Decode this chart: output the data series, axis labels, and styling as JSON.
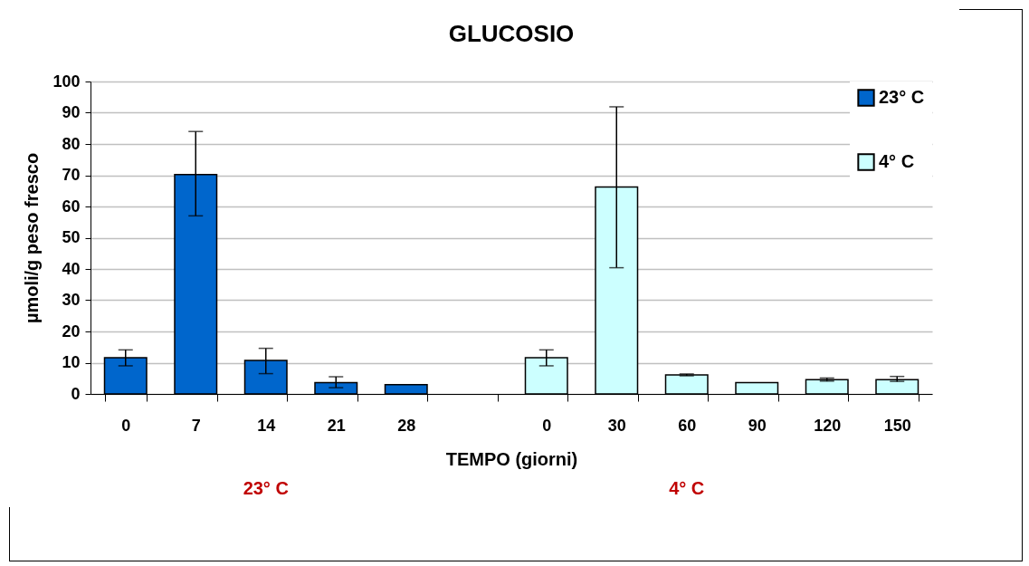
{
  "chart_data": {
    "type": "bar",
    "title": "GLUCOSIO",
    "xlabel": "TEMPO (giorni)",
    "ylabel": "µmoli/g peso fresco",
    "categories": [
      "0",
      "7",
      "14",
      "21",
      "28",
      null,
      "0",
      "30",
      "60",
      "90",
      "120",
      "150"
    ],
    "series": [
      {
        "name": "23° C",
        "color": "#0066cc",
        "values": [
          11.6,
          70.2,
          10.7,
          3.6,
          3.0,
          null,
          null,
          null,
          null,
          null,
          null,
          null
        ],
        "errors": [
          [
            9.0,
            14.1
          ],
          [
            57,
            84
          ],
          [
            6.5,
            14.6
          ],
          [
            2.0,
            5.5
          ],
          null,
          null,
          null,
          null,
          null,
          null,
          null,
          null
        ]
      },
      {
        "name": "4° C",
        "color": "#ccffff",
        "values": [
          null,
          null,
          null,
          null,
          null,
          null,
          11.6,
          66.2,
          6.1,
          3.6,
          4.6,
          4.6
        ],
        "errors": [
          null,
          null,
          null,
          null,
          null,
          null,
          [
            9.0,
            14.1
          ],
          [
            40.4,
            91.9
          ],
          [
            5.8,
            6.4
          ],
          null,
          [
            4.1,
            5.1
          ],
          [
            4.0,
            5.6
          ]
        ]
      }
    ],
    "ylim": [
      0,
      100
    ],
    "yticks": [
      0,
      10,
      20,
      30,
      40,
      50,
      60,
      70,
      80,
      90,
      100
    ],
    "grid": "y",
    "legend": "top right",
    "annotations": [
      "23° C",
      "4° C"
    ]
  }
}
